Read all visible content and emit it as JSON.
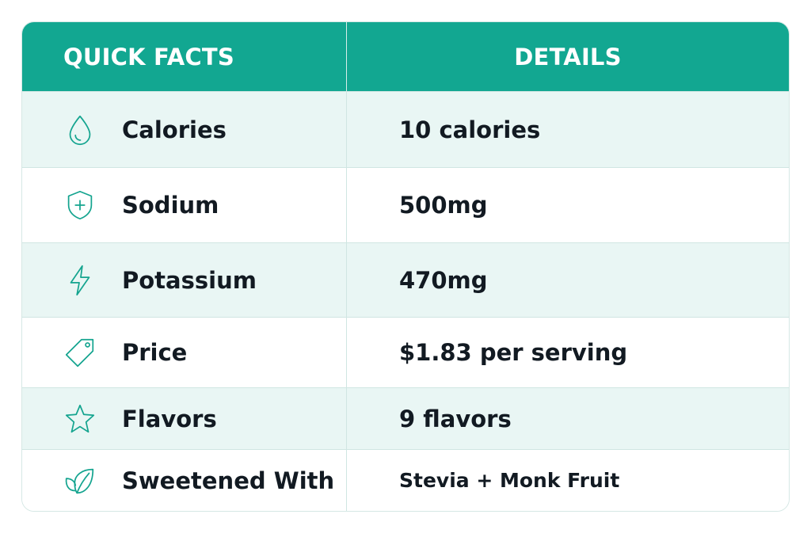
{
  "header": {
    "col1": "QUICK FACTS",
    "col2": "DETAILS"
  },
  "rows": [
    {
      "icon": "water-drop-icon",
      "label": "Calories",
      "value": "10 calories"
    },
    {
      "icon": "shield-plus-icon",
      "label": "Sodium",
      "value": "500mg"
    },
    {
      "icon": "lightning-bolt-icon",
      "label": "Potassium",
      "value": "470mg"
    },
    {
      "icon": "price-tag-icon",
      "label": "Price",
      "value": "$1.83 per serving"
    },
    {
      "icon": "star-icon",
      "label": "Flavors",
      "value": "9 flavors"
    },
    {
      "icon": "leaf-icon",
      "label": "Sweetened With",
      "value": "Stevia + Monk Fruit"
    }
  ],
  "colors": {
    "header_bg": "#12a791",
    "accent": "#14a48f",
    "alt_row_bg": "#e9f6f4",
    "text": "#121a22"
  }
}
